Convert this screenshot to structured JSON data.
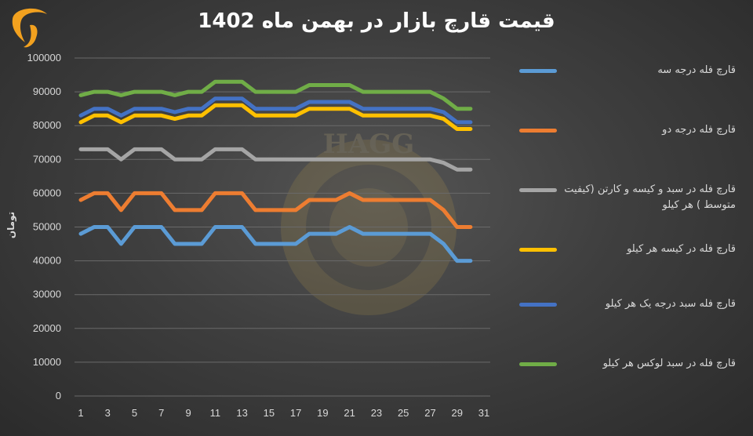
{
  "chart_data": {
    "type": "line",
    "title": "قیمت قارچ بازار در بهمن ماه 1402",
    "ylabel": "تومان",
    "xlabel": "",
    "xlim": [
      0,
      31
    ],
    "ylim": [
      0,
      100000
    ],
    "x_ticks": [
      1,
      3,
      5,
      7,
      9,
      11,
      13,
      15,
      17,
      19,
      21,
      23,
      25,
      27,
      29,
      31
    ],
    "y_ticks": [
      0,
      10000,
      20000,
      30000,
      40000,
      50000,
      60000,
      70000,
      80000,
      90000,
      100000
    ],
    "grid": true,
    "legend_position": "right",
    "x": [
      1,
      2,
      3,
      4,
      5,
      6,
      7,
      8,
      9,
      10,
      11,
      12,
      13,
      14,
      15,
      16,
      17,
      18,
      19,
      20,
      21,
      22,
      23,
      24,
      25,
      26,
      27,
      28,
      29,
      30
    ],
    "series": [
      {
        "name": "قارچ فله درجه سه",
        "color": "#5b9bd5",
        "values": [
          48000,
          50000,
          50000,
          45000,
          50000,
          50000,
          50000,
          45000,
          45000,
          45000,
          50000,
          50000,
          50000,
          45000,
          45000,
          45000,
          45000,
          48000,
          48000,
          48000,
          50000,
          48000,
          48000,
          48000,
          48000,
          48000,
          48000,
          45000,
          40000,
          40000
        ]
      },
      {
        "name": "قارچ فله درجه دو",
        "color": "#ed7d31",
        "values": [
          58000,
          60000,
          60000,
          55000,
          60000,
          60000,
          60000,
          55000,
          55000,
          55000,
          60000,
          60000,
          60000,
          55000,
          55000,
          55000,
          55000,
          58000,
          58000,
          58000,
          60000,
          58000,
          58000,
          58000,
          58000,
          58000,
          58000,
          55000,
          50000,
          50000
        ]
      },
      {
        "name": "قارچ فله در سبد و کیسه و کارتن (کیفیت متوسط ) هر کیلو",
        "color": "#a5a5a5",
        "values": [
          73000,
          73000,
          73000,
          70000,
          73000,
          73000,
          73000,
          70000,
          70000,
          70000,
          73000,
          73000,
          73000,
          70000,
          70000,
          70000,
          70000,
          70000,
          70000,
          70000,
          70000,
          70000,
          70000,
          70000,
          70000,
          70000,
          70000,
          69000,
          67000,
          67000
        ]
      },
      {
        "name": "قارچ فله در کیسه هر کیلو",
        "color": "#ffc000",
        "values": [
          81000,
          83000,
          83000,
          81000,
          83000,
          83000,
          83000,
          82000,
          83000,
          83000,
          86000,
          86000,
          86000,
          83000,
          83000,
          83000,
          83000,
          85000,
          85000,
          85000,
          85000,
          83000,
          83000,
          83000,
          83000,
          83000,
          83000,
          82000,
          79000,
          79000
        ]
      },
      {
        "name": "قارچ فله سبد درجه یک هر کیلو",
        "color": "#4472c4",
        "values": [
          83000,
          85000,
          85000,
          83000,
          85000,
          85000,
          85000,
          84000,
          85000,
          85000,
          88000,
          88000,
          88000,
          85000,
          85000,
          85000,
          85000,
          87000,
          87000,
          87000,
          87000,
          85000,
          85000,
          85000,
          85000,
          85000,
          85000,
          84000,
          81000,
          81000
        ]
      },
      {
        "name": "قارچ فله در سبد لوکس هر کیلو",
        "color": "#70ad47",
        "values": [
          89000,
          90000,
          90000,
          89000,
          90000,
          90000,
          90000,
          89000,
          90000,
          90000,
          93000,
          93000,
          93000,
          90000,
          90000,
          90000,
          90000,
          92000,
          92000,
          92000,
          92000,
          90000,
          90000,
          90000,
          90000,
          90000,
          90000,
          88000,
          85000,
          85000
        ]
      }
    ]
  },
  "watermark": {
    "text": "HAGG"
  }
}
